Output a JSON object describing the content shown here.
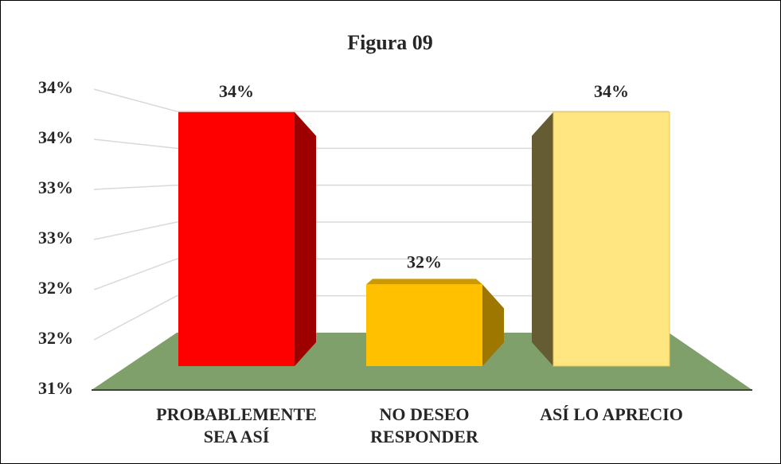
{
  "chart_data": {
    "type": "bar3d",
    "title": "Figura 09",
    "categories": [
      "PROBABLEMENTE SEA ASÍ",
      "NO DESEO RESPONDER",
      "ASÍ LO APRECIO"
    ],
    "values": [
      33.8,
      31.9,
      33.8
    ],
    "value_labels": [
      "34%",
      "32%",
      "34%"
    ],
    "colors": [
      "#ff0000",
      "#ffc000",
      "#ffe680"
    ],
    "ylim": [
      31,
      34
    ],
    "yticks": [
      {
        "value": 31,
        "label": "31%"
      },
      {
        "value": 31.5,
        "label": "32%"
      },
      {
        "value": 32,
        "label": "32%"
      },
      {
        "value": 32.5,
        "label": "33%"
      },
      {
        "value": 33,
        "label": "33%"
      },
      {
        "value": 33.5,
        "label": "34%"
      },
      {
        "value": 34,
        "label": "34%"
      }
    ],
    "grid": true
  }
}
